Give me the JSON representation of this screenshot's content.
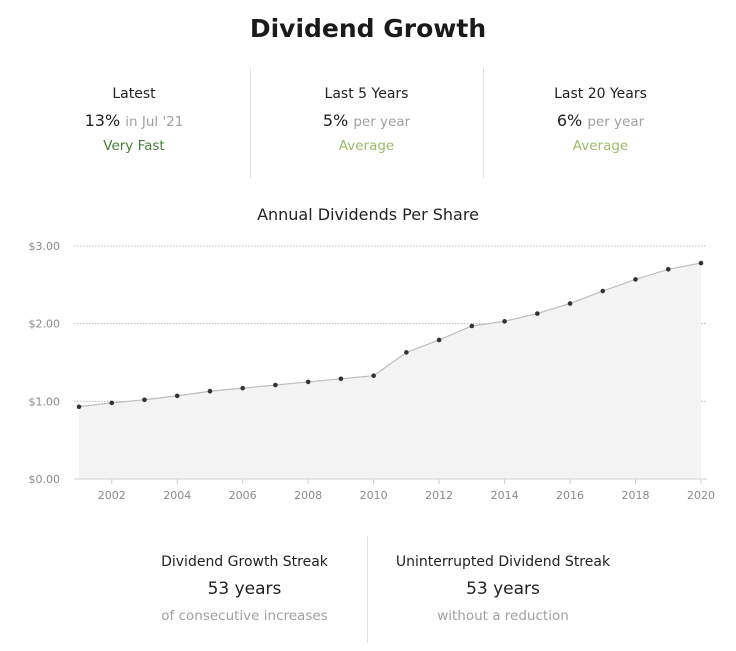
{
  "title": "Dividend Growth",
  "stats": [
    {
      "label": "Latest",
      "value": "13%",
      "sub": "in Jul '21",
      "rating": "Very Fast",
      "rating_color": "#4a7c3a"
    },
    {
      "label": "Last 5 Years",
      "value": "5%",
      "sub": "per year",
      "rating": "Average",
      "rating_color": "#9dbb6a"
    },
    {
      "label": "Last 20 Years",
      "value": "6%",
      "sub": "per year",
      "rating": "Average",
      "rating_color": "#9dbb6a"
    }
  ],
  "chart_data": {
    "type": "area",
    "title": "Annual Dividends Per Share",
    "xlabel": "",
    "ylabel": "",
    "x": [
      2001,
      2002,
      2003,
      2004,
      2005,
      2006,
      2007,
      2008,
      2009,
      2010,
      2011,
      2012,
      2013,
      2014,
      2015,
      2016,
      2017,
      2018,
      2019,
      2020
    ],
    "values": [
      0.93,
      0.98,
      1.02,
      1.07,
      1.13,
      1.17,
      1.21,
      1.25,
      1.29,
      1.33,
      1.63,
      1.79,
      1.97,
      2.03,
      2.13,
      2.26,
      2.42,
      2.57,
      2.7,
      2.78
    ],
    "xticks": [
      "2002",
      "2004",
      "2006",
      "2008",
      "2010",
      "2012",
      "2014",
      "2016",
      "2018",
      "2020"
    ],
    "yticks": [
      "$0.00",
      "$1.00",
      "$2.00",
      "$3.00"
    ],
    "ylim": [
      0,
      3
    ],
    "xlim": [
      2001,
      2020
    ],
    "grid": true,
    "fill_color": "#f4f4f4",
    "line_color": "#bdbdbd",
    "point_color": "#333333"
  },
  "streaks": [
    {
      "label": "Dividend Growth Streak",
      "value": "53 years",
      "sub": "of consecutive increases"
    },
    {
      "label": "Uninterrupted Dividend Streak",
      "value": "53 years",
      "sub": "without a reduction"
    }
  ]
}
